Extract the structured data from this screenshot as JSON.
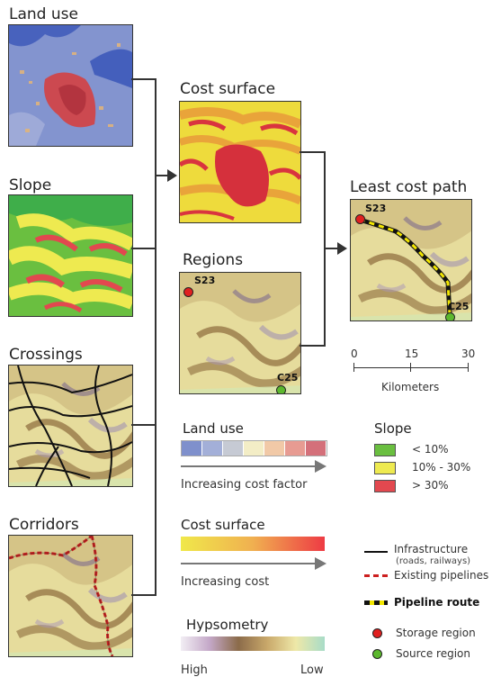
{
  "panels": {
    "land_use": "Land use",
    "slope": "Slope",
    "crossings": "Crossings",
    "corridors": "Corridors",
    "cost_surface": "Cost surface",
    "regions": "Regions",
    "least_cost_path": "Least cost path"
  },
  "map_labels": {
    "regions_s": "S23",
    "regions_c": "C25",
    "path_s": "S23",
    "path_c": "C25"
  },
  "scale": {
    "ticks": [
      "0",
      "15",
      "30"
    ],
    "unit": "Kilometers"
  },
  "legend_land_use": {
    "title": "Land use",
    "caption": "Increasing cost factor",
    "colors": [
      "#7f90cc",
      "#a3afd8",
      "#c6cad4",
      "#f3edc6",
      "#f1c9a7",
      "#e79b92",
      "#d4707a"
    ]
  },
  "legend_slope": {
    "title": "Slope",
    "items": [
      {
        "label": "< 10%",
        "color": "#6abf40"
      },
      {
        "label": "10% - 30%",
        "color": "#eeea50"
      },
      {
        "label": "> 30%",
        "color": "#e2484f"
      }
    ]
  },
  "legend_cost": {
    "title": "Cost surface",
    "caption": "Increasing cost"
  },
  "legend_hypsometry": {
    "title": "Hypsometry",
    "high": "High",
    "low": "Low"
  },
  "legend_lines": {
    "infrastructure": "Infrastructure",
    "infrastructure_note": "(roads, railways)",
    "pipelines": "Existing pipelines",
    "route": "Pipeline route",
    "storage": "Storage region",
    "source": "Source region"
  },
  "colors": {
    "storage": "#e02020",
    "source": "#5cb82e",
    "route_yellow": "#f2e600",
    "pipeline_red": "#cc1f1f"
  }
}
